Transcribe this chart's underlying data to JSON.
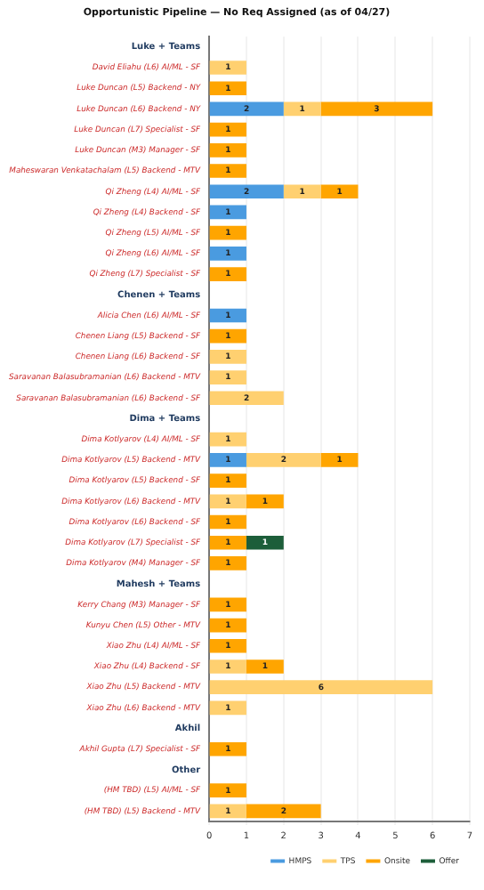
{
  "chart_data": {
    "type": "bar",
    "orientation": "horizontal",
    "stacked": true,
    "title": "Opportunistic Pipeline — No Req Assigned (as of 04/27)",
    "categories": [
      "Luke + Teams",
      "David Eliahu (L6) AI/ML - SF",
      "Luke Duncan (L5) Backend - NY",
      "Luke Duncan (L6) Backend - NY",
      "Luke Duncan (L7) Specialist - SF",
      "Luke Duncan (M3) Manager - SF",
      "Maheswaran Venkatachalam (L5) Backend - MTV",
      "Qi Zheng (L4) AI/ML - SF",
      "Qi Zheng (L4) Backend - SF",
      "Qi Zheng (L5) AI/ML - SF",
      "Qi Zheng (L6) AI/ML - SF",
      "Qi Zheng (L7) Specialist - SF",
      "Chenen + Teams",
      "Alicia Chen (L6) AI/ML - SF",
      "Chenen Liang (L5) Backend - SF",
      "Chenen Liang (L6) Backend - SF",
      "Saravanan Balasubramanian (L6) Backend - MTV",
      "Saravanan Balasubramanian (L6) Backend - SF",
      "Dima + Teams",
      "Dima Kotlyarov (L4) AI/ML - SF",
      "Dima Kotlyarov (L5) Backend - MTV",
      "Dima Kotlyarov (L5) Backend - SF",
      "Dima Kotlyarov (L6) Backend - MTV",
      "Dima Kotlyarov (L6) Backend - SF",
      "Dima Kotlyarov (L7) Specialist - SF",
      "Dima Kotlyarov (M4) Manager - SF",
      "Mahesh + Teams",
      "Kerry Chang (M3) Manager - SF",
      "Kunyu Chen (L5) Other - MTV",
      "Xiao Zhu (L4) AI/ML - SF",
      "Xiao Zhu (L4) Backend - SF",
      "Xiao Zhu (L5) Backend - MTV",
      "Xiao Zhu (L6) Backend - MTV",
      "Akhil",
      "Akhil Gupta (L7) Specialist - SF",
      "Other",
      "(HM TBD) (L5) AI/ML - SF",
      "(HM TBD) (L5) Backend - MTV"
    ],
    "series": [
      {
        "name": "HMPS",
        "color": "#4a9be0",
        "values": [
          null,
          null,
          null,
          2,
          null,
          null,
          null,
          2,
          1,
          null,
          1,
          null,
          null,
          1,
          null,
          null,
          null,
          null,
          null,
          null,
          1,
          null,
          null,
          null,
          null,
          null,
          null,
          null,
          null,
          null,
          null,
          null,
          null,
          null,
          null,
          null,
          null,
          null
        ]
      },
      {
        "name": "TPS",
        "color": "#ffd070",
        "values": [
          null,
          1,
          null,
          1,
          null,
          null,
          null,
          1,
          null,
          null,
          null,
          null,
          null,
          null,
          null,
          1,
          1,
          2,
          null,
          1,
          2,
          null,
          1,
          null,
          null,
          null,
          null,
          null,
          null,
          null,
          1,
          6,
          1,
          null,
          null,
          null,
          null,
          1
        ]
      },
      {
        "name": "Onsite",
        "color": "#ffa500",
        "values": [
          null,
          null,
          1,
          3,
          1,
          1,
          1,
          1,
          null,
          1,
          null,
          1,
          null,
          null,
          1,
          null,
          null,
          null,
          null,
          null,
          1,
          1,
          1,
          1,
          1,
          1,
          null,
          1,
          1,
          1,
          1,
          null,
          null,
          null,
          1,
          null,
          1,
          2
        ]
      },
      {
        "name": "Offer",
        "color": "#1d5e3a",
        "values": [
          null,
          null,
          null,
          null,
          null,
          null,
          null,
          null,
          null,
          null,
          null,
          null,
          null,
          null,
          null,
          null,
          null,
          null,
          null,
          null,
          null,
          null,
          null,
          null,
          1,
          null,
          null,
          null,
          null,
          null,
          null,
          null,
          null,
          null,
          null,
          null,
          null,
          null
        ]
      }
    ],
    "xlim": [
      0,
      7
    ],
    "xticks": [
      0,
      1,
      2,
      3,
      4,
      5,
      6,
      7
    ],
    "grid": "x",
    "legend": "bottom",
    "data_labels": true
  }
}
